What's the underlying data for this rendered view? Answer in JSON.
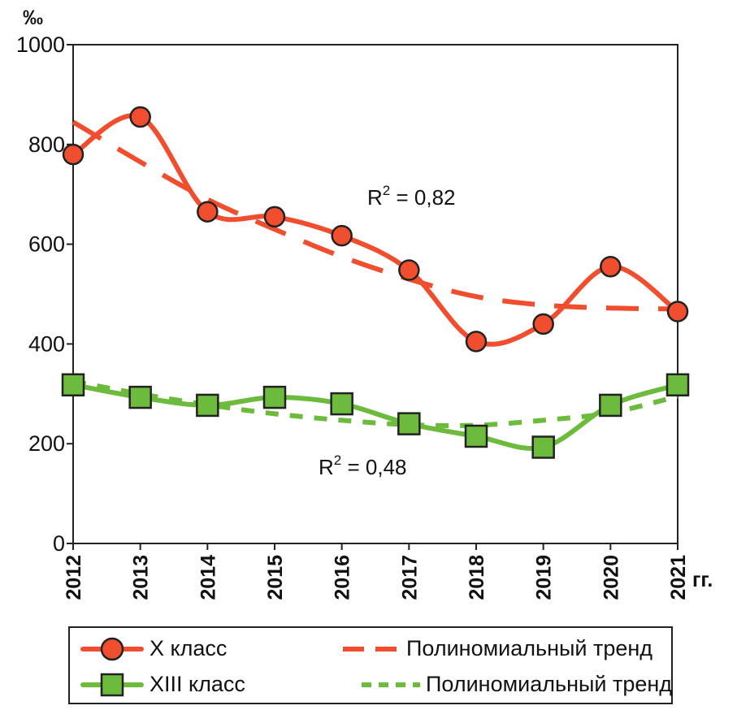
{
  "chart_data": {
    "type": "line",
    "unit_label": "‰",
    "x_unit_label": "гг.",
    "categories": [
      "2012",
      "2013",
      "2014",
      "2015",
      "2016",
      "2017",
      "2018",
      "2019",
      "2020",
      "2021"
    ],
    "ylim": [
      0,
      1000
    ],
    "yticks": [
      0,
      200,
      400,
      600,
      800,
      1000
    ],
    "grid": false,
    "series": [
      {
        "name": "X класс",
        "kind": "data",
        "marker": "circle",
        "color": "#f04e2e",
        "values": [
          780,
          855,
          665,
          655,
          617,
          548,
          405,
          440,
          555,
          465
        ]
      },
      {
        "name": "Полиномиальный тренд",
        "kind": "trend",
        "of": "X класс",
        "color": "#f04e2e",
        "values": [
          845,
          765,
          690,
          630,
          575,
          530,
          495,
          478,
          472,
          470
        ]
      },
      {
        "name": "XIII класс",
        "kind": "data",
        "marker": "square",
        "color": "#6cbb3c",
        "values": [
          318,
          293,
          277,
          293,
          280,
          240,
          215,
          193,
          277,
          318
        ]
      },
      {
        "name": "Полиномиальный тренд",
        "kind": "trend",
        "of": "XIII класс",
        "color": "#6cbb3c",
        "values": [
          325,
          300,
          278,
          260,
          247,
          238,
          237,
          247,
          262,
          295
        ]
      }
    ],
    "annotations": [
      {
        "series": "X класс",
        "r2_prefix": "R",
        "r2_exp": "2",
        "r2_suffix": " = 0,82"
      },
      {
        "series": "XIII класс",
        "r2_prefix": "R",
        "r2_exp": "2",
        "r2_suffix": " = 0,48"
      }
    ]
  },
  "legend": {
    "items": [
      {
        "label": "X класс"
      },
      {
        "label": "Полиномиальный тренд"
      },
      {
        "label": "XIII класс"
      },
      {
        "label": "Полиномиальный тренд"
      }
    ]
  }
}
